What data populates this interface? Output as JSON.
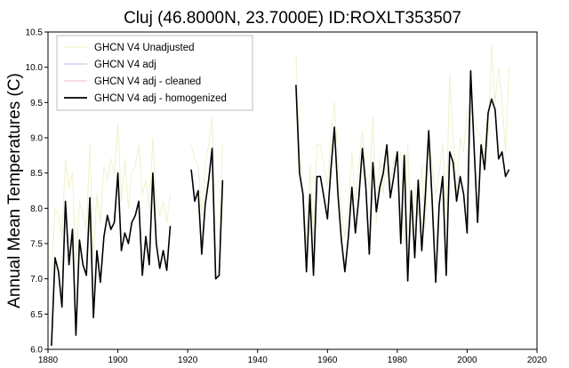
{
  "chart_data": {
    "type": "line",
    "title": "Cluj (46.8000N, 23.7000E) ID:ROXLT353507",
    "xlabel": "",
    "ylabel": "Annual Mean Temperatures (C)",
    "xlim": [
      1880,
      2020
    ],
    "ylim": [
      6.0,
      10.5
    ],
    "xticks": [
      1880,
      1900,
      1920,
      1940,
      1960,
      1980,
      2000,
      2020
    ],
    "yticks": [
      "6.0",
      "6.5",
      "7.0",
      "7.5",
      "8.0",
      "8.5",
      "9.0",
      "9.5",
      "10.0",
      "10.5"
    ],
    "grid": false,
    "legend_position": "top-left",
    "series": [
      {
        "name": "GHCN V4 Unadjusted",
        "color": "#f2f0cc",
        "segments": [
          {
            "x": [
              1881,
              1882,
              1883,
              1884,
              1885,
              1886,
              1887,
              1888,
              1889,
              1890,
              1891,
              1892,
              1893,
              1894,
              1895,
              1896,
              1897,
              1898,
              1899,
              1900,
              1901,
              1902,
              1903,
              1904,
              1905,
              1906,
              1907,
              1908,
              1909,
              1910,
              1911,
              1912,
              1913,
              1914,
              1915
            ],
            "y": [
              7.0,
              8.0,
              7.9,
              7.6,
              8.7,
              8.3,
              8.5,
              7.2,
              8.1,
              7.9,
              7.7,
              8.9,
              7.3,
              8.2,
              7.8,
              8.6,
              8.4,
              8.7,
              8.5,
              9.2,
              8.1,
              8.7,
              8.0,
              8.5,
              8.6,
              8.9,
              8.2,
              8.4,
              8.0,
              9.0,
              8.1,
              7.9,
              8.1,
              7.8,
              8.2
            ]
          },
          {
            "x": [
              1921,
              1922,
              1923,
              1924,
              1925,
              1926,
              1927,
              1928,
              1929,
              1930
            ],
            "y": [
              8.9,
              8.7,
              8.6,
              7.9,
              8.6,
              8.9,
              9.3,
              7.4,
              7.5,
              8.9
            ]
          },
          {
            "x": [
              1951,
              1952,
              1953,
              1954,
              1955,
              1956,
              1957,
              1958,
              1959,
              1960,
              1961,
              1962,
              1963,
              1964,
              1965,
              1966,
              1967,
              1968,
              1969,
              1970,
              1971,
              1972,
              1973,
              1974,
              1975,
              1976,
              1977,
              1978,
              1979,
              1980,
              1981,
              1982,
              1983,
              1984,
              1985,
              1986,
              1987,
              1988,
              1989,
              1990,
              1991,
              1992,
              1993,
              1994,
              1995,
              1996,
              1997,
              1998,
              1999,
              2000,
              2001,
              2002,
              2003,
              2004,
              2005,
              2006,
              2007,
              2008,
              2009,
              2010,
              2011,
              2012
            ],
            "y": [
              10.2,
              8.9,
              8.2,
              7.5,
              8.6,
              7.6,
              8.9,
              8.9,
              8.6,
              8.3,
              9.0,
              9.5,
              8.7,
              8.0,
              7.6,
              8.0,
              8.8,
              8.1,
              8.6,
              9.1,
              8.5,
              8.3,
              9.3,
              7.8,
              8.7,
              8.2,
              8.9,
              8.3,
              8.7,
              8.6,
              8.8,
              7.5,
              8.9,
              7.6,
              8.3,
              7.9,
              8.6,
              7.7,
              9.0,
              8.6,
              8.2,
              8.5,
              8.9,
              7.9,
              9.9,
              9.0,
              8.2,
              9.0,
              8.8,
              9.4,
              9.4,
              9.2,
              9.1,
              9.0,
              8.7,
              9.0,
              10.3,
              9.5,
              10.0,
              9.5,
              8.8,
              10.0
            ]
          }
        ]
      },
      {
        "name": "GHCN V4 adj",
        "color": "#c7c7e6",
        "segments": []
      },
      {
        "name": "GHCN V4 adj - cleaned",
        "color": "#f1c6d5",
        "segments": []
      },
      {
        "name": "GHCN V4 adj - homogenized",
        "color": "#000000",
        "segments": [
          {
            "x": [
              1881,
              1882,
              1883,
              1884,
              1885,
              1886,
              1887,
              1888,
              1889,
              1890,
              1891,
              1892,
              1893,
              1894,
              1895,
              1896,
              1897,
              1898,
              1899,
              1900,
              1901,
              1902,
              1903,
              1904,
              1905,
              1906,
              1907,
              1908,
              1909,
              1910,
              1911,
              1912,
              1913,
              1914,
              1915
            ],
            "y": [
              6.05,
              7.3,
              7.1,
              6.6,
              8.1,
              7.2,
              7.7,
              6.2,
              7.55,
              7.2,
              7.05,
              8.15,
              6.45,
              7.4,
              6.95,
              7.6,
              7.9,
              7.7,
              7.8,
              8.5,
              7.4,
              7.65,
              7.5,
              7.8,
              7.9,
              8.1,
              7.05,
              7.6,
              7.2,
              8.5,
              7.5,
              7.15,
              7.4,
              7.12,
              7.75
            ]
          },
          {
            "x": [
              1921,
              1922,
              1923,
              1924,
              1925,
              1926,
              1927,
              1928,
              1929,
              1930
            ],
            "y": [
              8.55,
              8.1,
              8.25,
              7.35,
              8.05,
              8.4,
              8.85,
              7.0,
              7.05,
              8.4
            ]
          },
          {
            "x": [
              1951,
              1952,
              1953,
              1954,
              1955,
              1956,
              1957,
              1958,
              1959,
              1960,
              1961,
              1962,
              1963,
              1964,
              1965,
              1966,
              1967,
              1968,
              1969,
              1970,
              1971,
              1972,
              1973,
              1974,
              1975,
              1976,
              1977,
              1978,
              1979,
              1980,
              1981,
              1982,
              1983,
              1984,
              1985,
              1986,
              1987,
              1988,
              1989,
              1990,
              1991,
              1992,
              1993,
              1994,
              1995,
              1996,
              1997,
              1998,
              1999,
              2000,
              2001,
              2002,
              2003,
              2004,
              2005,
              2006,
              2007,
              2008,
              2009,
              2010,
              2011,
              2012
            ],
            "y": [
              9.75,
              8.5,
              8.2,
              7.1,
              8.2,
              7.05,
              8.45,
              8.45,
              8.15,
              7.85,
              8.55,
              9.15,
              8.2,
              7.55,
              7.1,
              7.6,
              8.3,
              7.65,
              8.15,
              8.85,
              8.3,
              7.35,
              8.65,
              7.95,
              8.3,
              8.5,
              8.9,
              8.15,
              8.45,
              8.8,
              7.5,
              8.75,
              6.97,
              8.25,
              7.3,
              8.4,
              7.4,
              8.15,
              9.1,
              8.1,
              6.95,
              8.05,
              8.45,
              7.05,
              8.8,
              8.65,
              8.1,
              8.45,
              8.2,
              7.65,
              9.95,
              8.85,
              7.8,
              8.9,
              8.55,
              9.35,
              9.55,
              9.4,
              8.7,
              8.8,
              8.45,
              8.55
            ]
          }
        ]
      }
    ]
  }
}
